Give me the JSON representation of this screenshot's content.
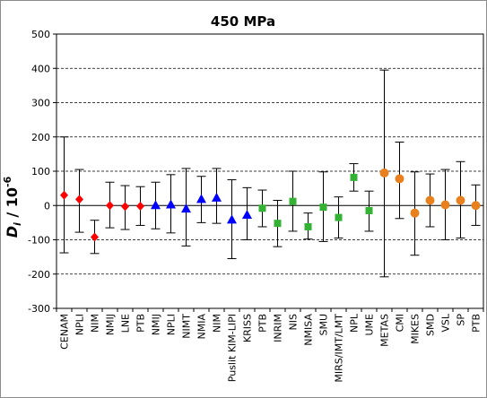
{
  "chart_data": {
    "type": "scatter",
    "title": "450 MPa",
    "ylabel": {
      "main": "D",
      "sub": "i",
      "mid": " / 10",
      "sup": "-6"
    },
    "xlabel": "",
    "ylim": [
      -300,
      500
    ],
    "yticks": [
      -300,
      -200,
      -100,
      0,
      100,
      200,
      300,
      400,
      500
    ],
    "grid": "horizontal-dashed",
    "legend": "none",
    "categories": [
      "CENAM",
      "NPLI",
      "NIM",
      "NMIJ",
      "LNE",
      "PTB",
      "NMIJ",
      "NPLI",
      "NIMT",
      "NMIA",
      "NIM",
      "Puslit KIM-LIPI",
      "KRISS",
      "PTB",
      "INRIM",
      "NIS",
      "NMISA",
      "SMU",
      "MIRS/IMT/LMT",
      "NPL",
      "UME",
      "METAS",
      "CMI",
      "MIKES",
      "SMD",
      "VSL",
      "SP",
      "PTB"
    ],
    "series": [
      {
        "marker": "diamond",
        "color": "#ff0000",
        "x_index": [
          0,
          1,
          2,
          3,
          4,
          5
        ],
        "values": [
          30,
          18,
          -92,
          0,
          -3,
          -2
        ],
        "err_low": [
          -138,
          -78,
          -140,
          -65,
          -70,
          -58
        ],
        "err_high": [
          200,
          105,
          -43,
          68,
          58,
          55
        ]
      },
      {
        "marker": "triangle",
        "color": "#0000ff",
        "x_index": [
          6,
          7,
          8,
          9,
          10,
          11,
          12
        ],
        "values": [
          0,
          2,
          -10,
          18,
          22,
          -42,
          -28
        ],
        "err_low": [
          -68,
          -80,
          -118,
          -50,
          -52,
          -155,
          -100
        ],
        "err_high": [
          68,
          90,
          108,
          85,
          108,
          75,
          52
        ]
      },
      {
        "marker": "square",
        "color": "#33b233",
        "x_index": [
          13,
          14,
          15,
          16,
          17,
          18,
          19,
          20
        ],
        "values": [
          -8,
          -52,
          12,
          -62,
          -5,
          -35,
          82,
          -15
        ],
        "err_low": [
          -62,
          -120,
          -75,
          -98,
          -105,
          -95,
          42,
          -75
        ],
        "err_high": [
          45,
          15,
          100,
          -22,
          98,
          25,
          122,
          42
        ]
      },
      {
        "marker": "circle",
        "color": "#e8801e",
        "x_index": [
          21,
          22,
          23,
          24,
          25,
          26,
          27
        ],
        "values": [
          95,
          78,
          -22,
          15,
          2,
          15,
          0
        ],
        "err_low": [
          -208,
          -38,
          -145,
          -62,
          -100,
          -95,
          -58
        ],
        "err_high": [
          395,
          185,
          98,
          92,
          105,
          128,
          60
        ]
      }
    ]
  }
}
